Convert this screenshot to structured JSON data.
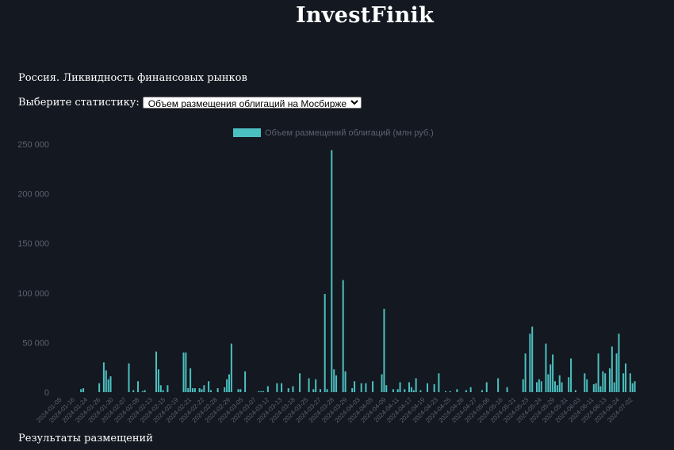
{
  "header": {
    "logo": "InvestFinik"
  },
  "page": {
    "subtitle": "Россия. Ликвидность финансовых рынков",
    "select_label": "Выберите статистику:",
    "select_value": "Объем размещения облигаций на Мосбирже",
    "results_heading": "Результаты размещений"
  },
  "colors": {
    "bar": "#4bc0c0",
    "background": "#141820",
    "tick": "#5b6270"
  },
  "chart_data": {
    "type": "bar",
    "legend": "Объем размещений облигаций (млн руб.)",
    "legend_position": "top-center",
    "ylim": [
      0,
      250000
    ],
    "yticks": [
      0,
      50000,
      100000,
      150000,
      200000,
      250000
    ],
    "ytick_labels": [
      "0",
      "50 000",
      "100 000",
      "150 000",
      "200 000",
      "250 000"
    ],
    "xtick_labels": [
      "2024-01-08",
      "2024-01-16",
      "2024-01-24",
      "2024-01-26",
      "2024-01-30",
      "2024-02-07",
      "2024-02-08",
      "2024-02-13",
      "2024-02-15",
      "2024-02-19",
      "2024-02-21",
      "2024-02-22",
      "2024-02-28",
      "2024-02-29",
      "2024-03-05",
      "2024-03-07",
      "2024-03-12",
      "2024-03-13",
      "2024-03-18",
      "2024-03-25",
      "2024-03-27",
      "2024-03-28",
      "2024-03-29",
      "2024-04-03",
      "2024-04-05",
      "2024-04-09",
      "2024-04-11",
      "2024-04-17",
      "2024-04-19",
      "2024-04-23",
      "2024-04-25",
      "2024-04-26",
      "2024-04-27",
      "2024-05-06",
      "2024-05-16",
      "2024-05-21",
      "2024-05-23",
      "2024-05-24",
      "2024-05-29",
      "2024-05-31",
      "2024-06-03",
      "2024-06-11",
      "2024-06-13",
      "2024-06-24",
      "2024-07-02"
    ],
    "grid": false,
    "values": [
      0,
      0,
      0,
      0,
      0,
      0,
      0,
      0,
      0,
      0,
      3000,
      4000,
      0,
      0,
      0,
      0,
      0,
      0,
      9000,
      0,
      30000,
      22000,
      13000,
      16000,
      0,
      0,
      0,
      0,
      0,
      0,
      0,
      29000,
      0,
      2000,
      0,
      11000,
      0,
      1000,
      2000,
      0,
      0,
      0,
      0,
      41000,
      23000,
      7000,
      2000,
      0,
      7000,
      0,
      0,
      0,
      0,
      0,
      0,
      40000,
      40000,
      4000,
      24000,
      4000,
      4000,
      0,
      4000,
      3000,
      7000,
      0,
      11000,
      2000,
      0,
      0,
      4000,
      0,
      0,
      5000,
      13000,
      18000,
      49000,
      0,
      0,
      3000,
      3000,
      0,
      21000,
      0,
      0,
      0,
      0,
      0,
      1000,
      1000,
      1000,
      0,
      6000,
      0,
      0,
      0,
      9000,
      0,
      9000,
      0,
      0,
      4000,
      0,
      6000,
      0,
      0,
      19000,
      0,
      0,
      0,
      14000,
      0,
      3000,
      13000,
      0,
      3000,
      0,
      99000,
      3000,
      0,
      244000,
      23000,
      17000,
      0,
      0,
      113000,
      21000,
      0,
      0,
      4000,
      11000,
      0,
      0,
      9000,
      0,
      9000,
      0,
      0,
      11000,
      0,
      0,
      0,
      18000,
      84000,
      7000,
      0,
      0,
      3000,
      0,
      3000,
      10000,
      0,
      3000,
      0,
      10000,
      5000,
      2000,
      14000,
      0,
      2000,
      0,
      0,
      9000,
      0,
      0,
      8000,
      0,
      19000,
      0,
      0,
      1000,
      0,
      1000,
      0,
      0,
      3000,
      0,
      0,
      0,
      2000,
      0,
      5000,
      0,
      0,
      0,
      0,
      2000,
      0,
      10000,
      0,
      0,
      0,
      0,
      14000,
      0,
      0,
      0,
      5000,
      0,
      0,
      0,
      0,
      0,
      0,
      13000,
      39000,
      0,
      59000,
      66000,
      0,
      10000,
      13000,
      11000,
      0,
      49000,
      18000,
      28000,
      38000,
      11000,
      7000,
      17000,
      10000,
      0,
      0,
      15000,
      34000,
      0,
      2000,
      0,
      0,
      0,
      19000,
      13000,
      0,
      0,
      8000,
      9000,
      39000,
      6000,
      21000,
      19000,
      0,
      24000,
      46000,
      10000,
      39000,
      59000,
      0,
      19000,
      29000,
      0,
      19000,
      9000,
      11000
    ]
  }
}
